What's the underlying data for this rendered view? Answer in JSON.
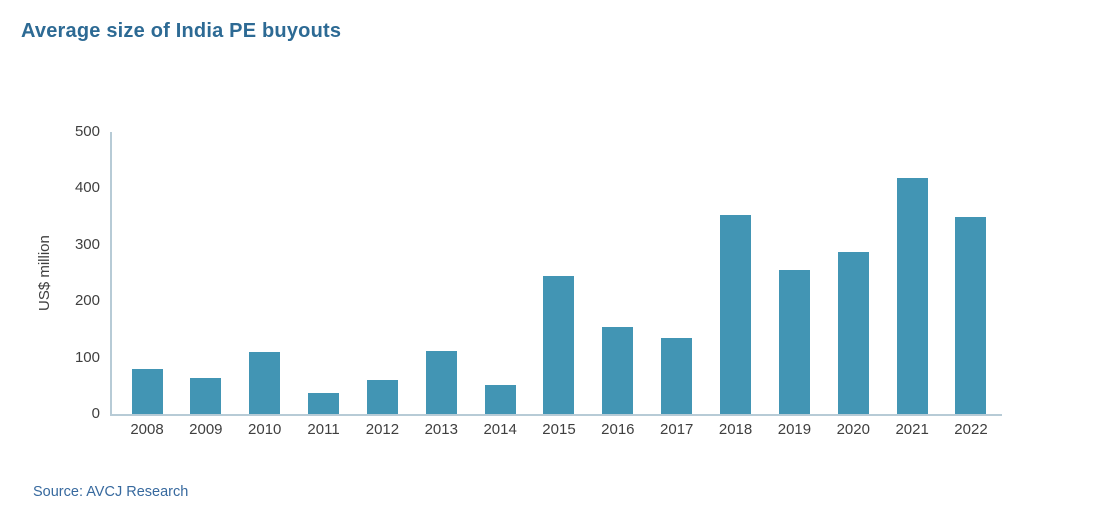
{
  "page": {
    "title": "Average size of India PE buyouts",
    "source": "Source: AVCJ Research"
  },
  "colors": {
    "background": "#ffffff",
    "title_text": "#2d6a94",
    "source_text": "#37699e",
    "bar_fill": "#4295b4",
    "axis_line": "#b7cbd6",
    "axis_text": "#3f3f3f"
  },
  "chart_data": {
    "type": "bar",
    "title": "Average size of India PE buyouts",
    "categories": [
      "2008",
      "2009",
      "2010",
      "2011",
      "2012",
      "2013",
      "2014",
      "2015",
      "2016",
      "2017",
      "2018",
      "2019",
      "2020",
      "2021",
      "2022"
    ],
    "values": [
      80,
      63,
      110,
      38,
      60,
      112,
      52,
      245,
      154,
      135,
      353,
      255,
      288,
      418,
      350
    ],
    "xlabel": "",
    "ylabel": "US$ million",
    "ylim": [
      0,
      500
    ],
    "yticks": [
      0,
      100,
      200,
      300,
      400,
      500
    ],
    "grid": false,
    "legend": false
  }
}
